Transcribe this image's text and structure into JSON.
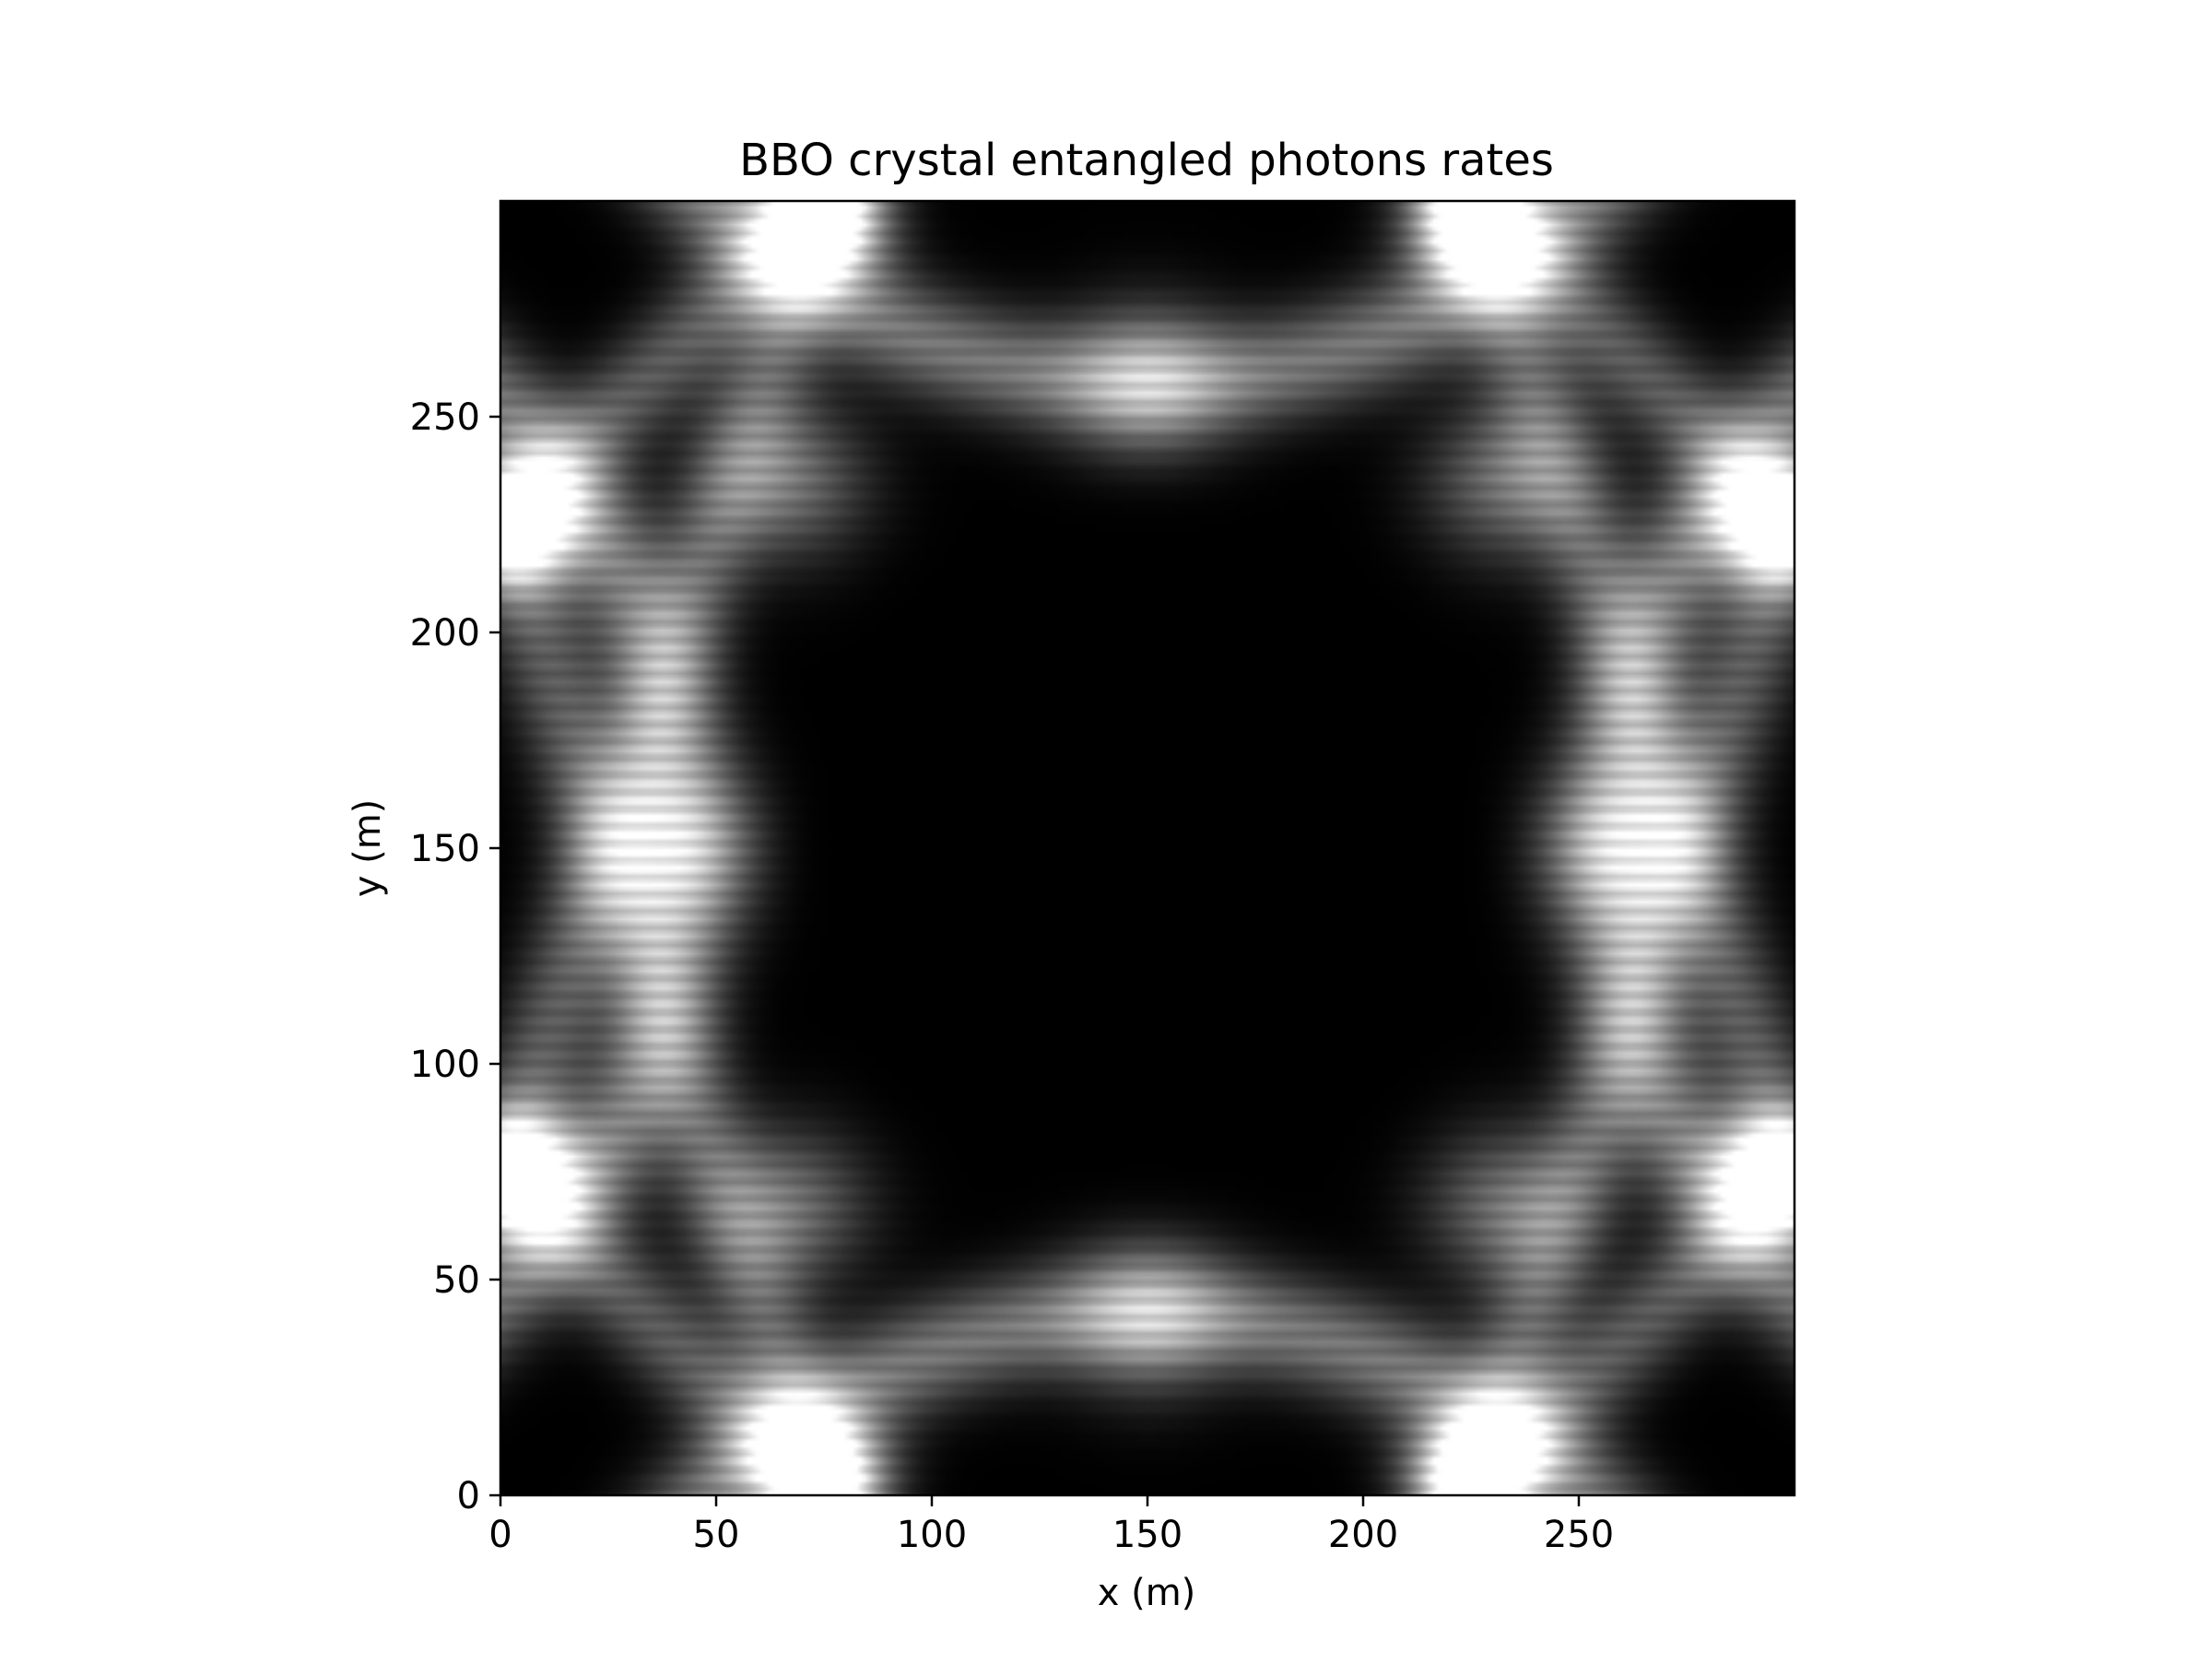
{
  "chart_data": {
    "type": "heatmap",
    "title": "BBO crystal entangled photons rates",
    "xlabel": "x (m)",
    "ylabel": "y (m)",
    "xlim": [
      0,
      300
    ],
    "ylim": [
      0,
      300
    ],
    "xticks": [
      0,
      50,
      100,
      150,
      200,
      250
    ],
    "yticks": [
      0,
      50,
      100,
      150,
      200,
      250
    ],
    "colormap": "gray",
    "grid": false,
    "legend": "none",
    "description": "",
    "features": {
      "brightest_spots": [
        [
          75,
          295
        ],
        [
          225,
          295
        ],
        [
          5,
          225
        ],
        [
          295,
          225
        ],
        [
          5,
          75
        ],
        [
          295,
          75
        ],
        [
          75,
          5
        ],
        [
          225,
          5
        ]
      ],
      "bright_spots": [
        [
          150,
          258
        ],
        [
          150,
          42
        ],
        [
          43,
          150
        ],
        [
          257,
          150
        ],
        [
          67,
          235
        ],
        [
          233,
          235
        ],
        [
          67,
          67
        ],
        [
          233,
          67
        ]
      ],
      "dark_central_disk": {
        "center": [
          150,
          150
        ],
        "radius": 80
      }
    }
  }
}
